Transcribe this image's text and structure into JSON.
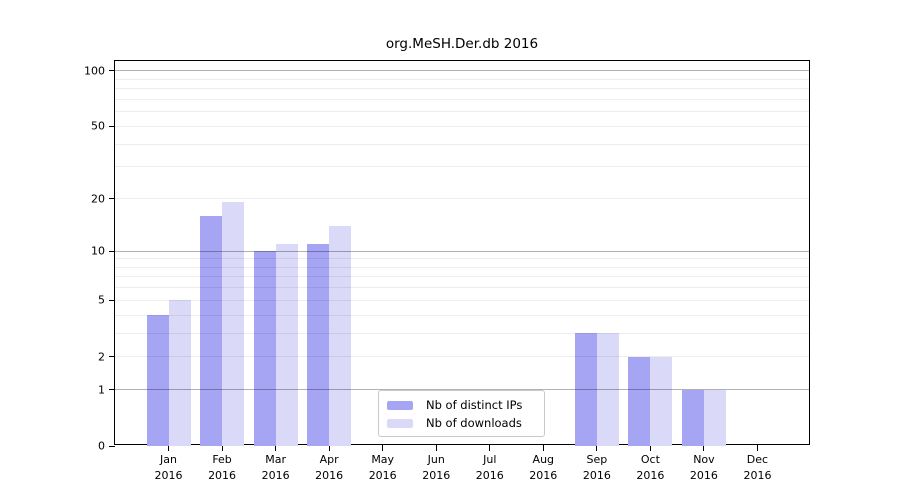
{
  "chart_data": {
    "type": "bar",
    "title": "org.MeSH.Der.db 2016",
    "categories": [
      "Jan",
      "Feb",
      "Mar",
      "Apr",
      "May",
      "Jun",
      "Jul",
      "Aug",
      "Sep",
      "Oct",
      "Nov",
      "Dec"
    ],
    "x_year_suffix": "2016",
    "series": [
      {
        "name": "Nb of distinct IPs",
        "color": "#a5a5f3",
        "values": [
          4,
          16,
          10,
          11,
          0,
          0,
          0,
          0,
          3,
          2,
          1,
          0
        ]
      },
      {
        "name": "Nb of downloads",
        "color": "#dadaf8",
        "values": [
          5,
          19,
          11,
          14,
          0,
          0,
          0,
          0,
          3,
          2,
          1,
          0
        ]
      }
    ],
    "y_scale": "log10(value+1)",
    "y_tick_values": [
      0,
      1,
      2,
      5,
      10,
      20,
      50,
      100
    ],
    "y_tick_labels": [
      "0",
      "1",
      "2",
      "5",
      "10",
      "20",
      "50",
      "100"
    ],
    "y_major_gridlines": [
      1,
      10,
      100
    ],
    "y_minor_gridlines": [
      2,
      3,
      4,
      5,
      6,
      7,
      8,
      9,
      20,
      30,
      40,
      50,
      60,
      70,
      80,
      90
    ],
    "ylim": [
      0,
      113
    ],
    "grid_major_color": "rgba(0,0,0,0.30)",
    "grid_minor_color": "rgba(0,0,0,0.07)",
    "legend_position": "lower-center",
    "xlabel": "",
    "ylabel": ""
  }
}
